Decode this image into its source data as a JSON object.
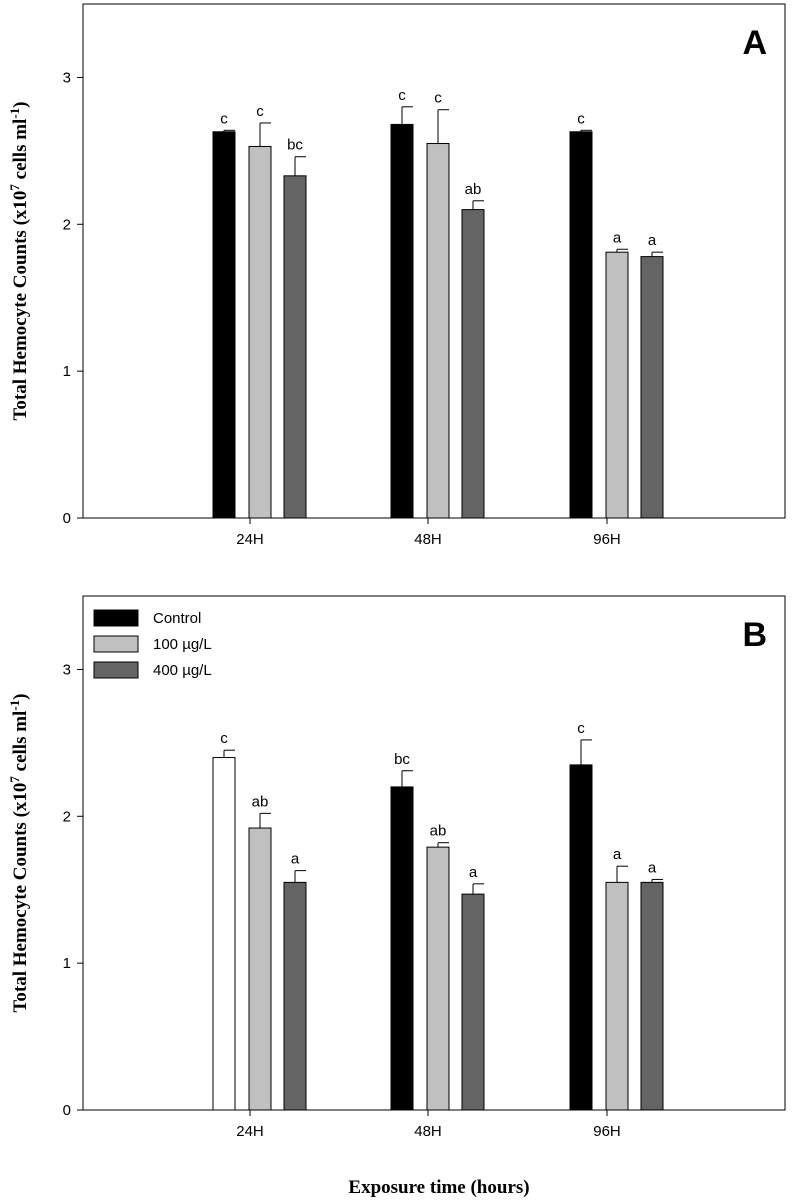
{
  "chart_data": [
    {
      "type": "bar",
      "panel_label": "A",
      "categories": [
        "24H",
        "48H",
        "96H"
      ],
      "ylabel": {
        "main": "Total Hemocyte Counts (x10",
        "sup": "7",
        "mid": " cells ml",
        "sup2": "-1",
        "end": ")"
      },
      "yticks": [
        "0",
        "1",
        "2",
        "3"
      ],
      "ylim": [
        0,
        3.5
      ],
      "legend": false,
      "series": [
        {
          "name": "Control",
          "color": "#000000",
          "values": [
            2.63,
            2.68,
            2.63
          ],
          "errors": [
            0.01,
            0.12,
            0.01
          ],
          "labels": [
            "c",
            "c",
            "c"
          ]
        },
        {
          "name": "100 µg/L",
          "color": "#c0c0c0",
          "values": [
            2.53,
            2.55,
            1.81
          ],
          "errors": [
            0.16,
            0.23,
            0.02
          ],
          "labels": [
            "c",
            "c",
            "a"
          ]
        },
        {
          "name": "400 µg/L",
          "color": "#646464",
          "values": [
            2.33,
            2.1,
            1.78
          ],
          "errors": [
            0.13,
            0.06,
            0.03
          ],
          "labels": [
            "bc",
            "ab",
            "a"
          ]
        }
      ]
    },
    {
      "type": "bar",
      "panel_label": "B",
      "categories": [
        "24H",
        "48H",
        "96H"
      ],
      "ylabel": {
        "main": "Total Hemocyte Counts (x10",
        "sup": "7",
        "mid": " cells ml",
        "sup2": "-1",
        "end": ")"
      },
      "yticks": [
        "0",
        "1",
        "2",
        "3"
      ],
      "ylim": [
        0,
        3.5
      ],
      "legend": true,
      "series": [
        {
          "name": "Control",
          "color": "#000000",
          "bar_colors": [
            "#ffffff",
            "#000000",
            "#000000"
          ],
          "values": [
            2.4,
            2.2,
            2.35
          ],
          "errors": [
            0.05,
            0.11,
            0.17
          ],
          "labels": [
            "c",
            "bc",
            "c"
          ]
        },
        {
          "name": "100 µg/L",
          "color": "#c0c0c0",
          "values": [
            1.92,
            1.79,
            1.55
          ],
          "errors": [
            0.1,
            0.03,
            0.11
          ],
          "labels": [
            "ab",
            "ab",
            "a"
          ]
        },
        {
          "name": "400 µg/L",
          "color": "#646464",
          "values": [
            1.55,
            1.47,
            1.55
          ],
          "errors": [
            0.08,
            0.07,
            0.02
          ],
          "labels": [
            "a",
            "a",
            "a"
          ]
        }
      ]
    }
  ],
  "xlabel": "Exposure time (hours)"
}
